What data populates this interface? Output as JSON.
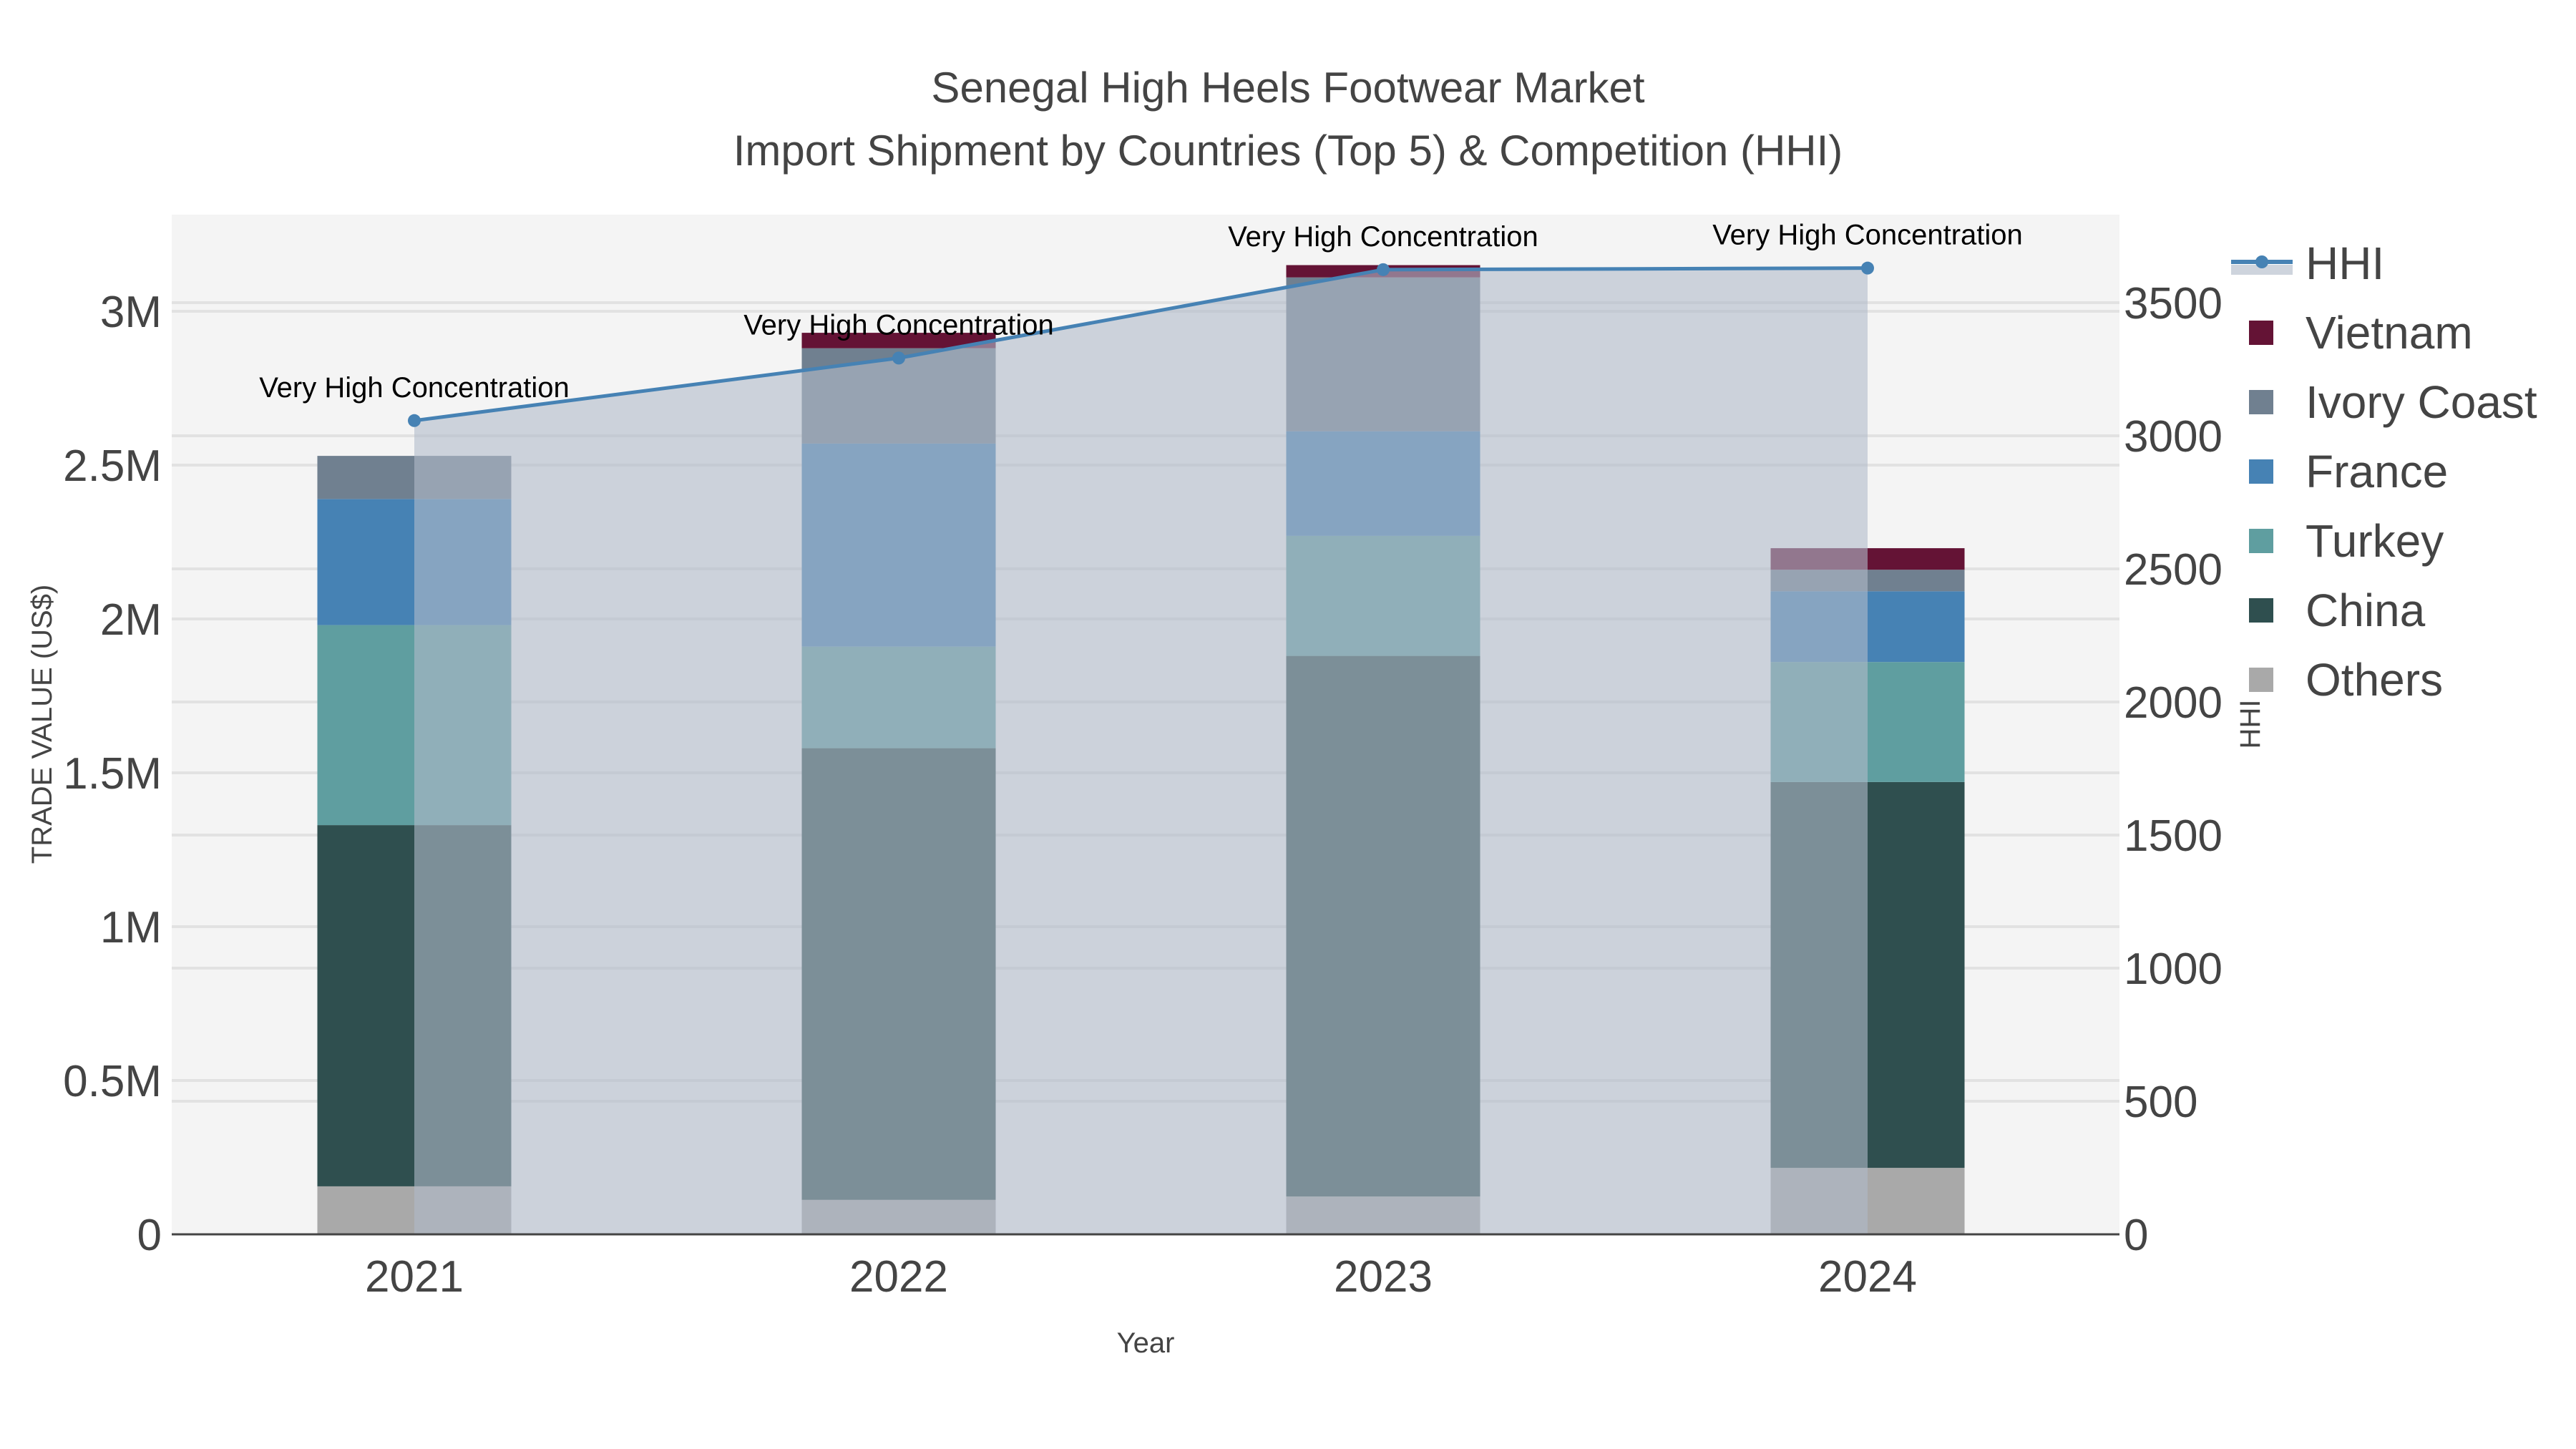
{
  "header": {
    "title_line1": "Senegal High Heels Footwear Market",
    "title_line2": "Import Shipment by Countries (Top 5) & Competition (HHI)"
  },
  "axes": {
    "x_title": "Year",
    "y_left_title": "TRADE VALUE (US$)",
    "y_right_title": "HHI",
    "y_left_ticks": [
      "0",
      "0.5M",
      "1M",
      "1.5M",
      "2M",
      "2.5M",
      "3M"
    ],
    "y_right_ticks": [
      "0",
      "500",
      "1000",
      "1500",
      "2000",
      "2500",
      "3000",
      "3500"
    ]
  },
  "legend": {
    "items": [
      {
        "label": "HHI",
        "color": "#4682B4"
      },
      {
        "label": "Vietnam",
        "color": "#641335"
      },
      {
        "label": "Ivory Coast",
        "color": "#708090"
      },
      {
        "label": "France",
        "color": "#4682B4"
      },
      {
        "label": "Turkey",
        "color": "#5F9EA0"
      },
      {
        "label": "China",
        "color": "#2F4F4F"
      },
      {
        "label": "Others",
        "color": "#A9A9A9"
      }
    ]
  },
  "annotations": [
    "Very High Concentration",
    "Very High Concentration",
    "Very High Concentration",
    "Very High Concentration"
  ],
  "chart_data": {
    "type": "bar",
    "title": "Senegal High Heels Footwear Market - Import Shipment by Countries (Top 5) & Competition (HHI)",
    "xlabel": "Year",
    "ylabel": "TRADE VALUE (US$)",
    "y2label": "HHI",
    "stacked": true,
    "categories": [
      "2021",
      "2022",
      "2023",
      "2024"
    ],
    "series": [
      {
        "name": "Others",
        "color": "#A9A9A9",
        "values": [
          156000,
          112000,
          123000,
          216000
        ]
      },
      {
        "name": "China",
        "color": "#2F4F4F",
        "values": [
          1174000,
          1468000,
          1757000,
          1254000
        ]
      },
      {
        "name": "Turkey",
        "color": "#5F9EA0",
        "values": [
          650000,
          330000,
          390000,
          390000
        ]
      },
      {
        "name": "France",
        "color": "#4682B4",
        "values": [
          410000,
          660000,
          340000,
          230000
        ]
      },
      {
        "name": "Ivory Coast",
        "color": "#708090",
        "values": [
          140000,
          310000,
          500000,
          70000
        ]
      },
      {
        "name": "Vietnam",
        "color": "#641335",
        "values": [
          0,
          50000,
          40000,
          70000
        ]
      }
    ],
    "line_series": {
      "name": "HHI",
      "axis": "right",
      "color": "#4682B4",
      "fill": "tozeroy",
      "values": [
        3057,
        3292,
        3624,
        3630
      ]
    },
    "ylim": [
      0,
      3310000
    ],
    "y2lim": [
      0,
      3850
    ],
    "legend_position": "right",
    "grid": true,
    "annotations": [
      "Very High Concentration",
      "Very High Concentration",
      "Very High Concentration",
      "Very High Concentration"
    ]
  }
}
